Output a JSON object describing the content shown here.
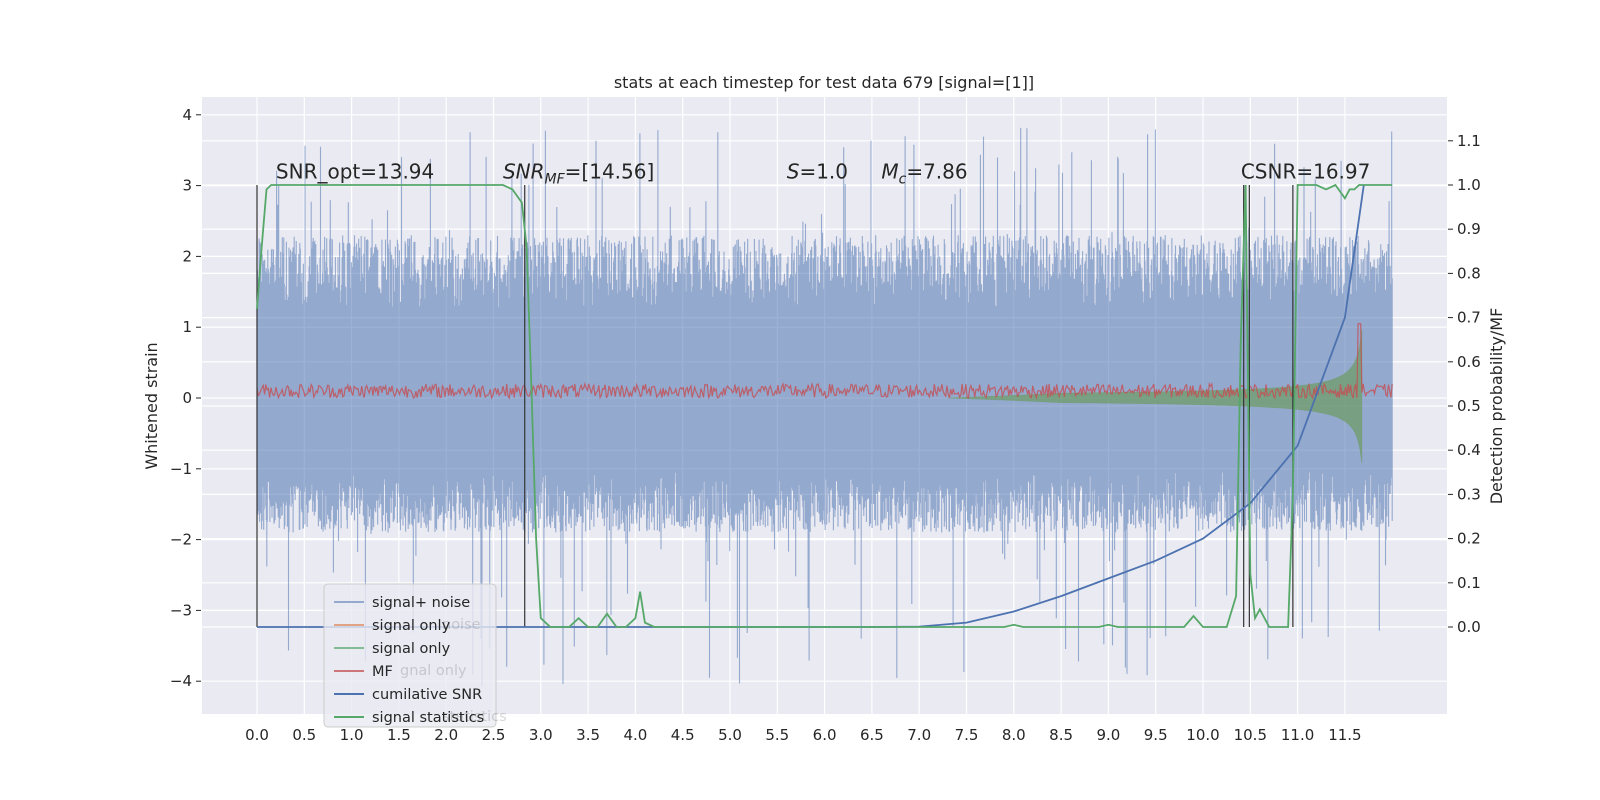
{
  "chart_data": {
    "type": "line",
    "title": "stats at each timestep for test data 679 [signal=[1]]",
    "xlabel": "",
    "ylabel": "Whitened strain",
    "y2label": "Detection probability/MF",
    "xlim": [
      -0.6,
      12.6
    ],
    "ylim": [
      -4.45,
      4.25
    ],
    "y2lim": [
      -0.2,
      1.19
    ],
    "grid": true,
    "background": "#eaeaf2",
    "x_ticks": [
      "0.0",
      "0.5",
      "1.0",
      "1.5",
      "2.0",
      "2.5",
      "3.0",
      "3.5",
      "4.0",
      "4.5",
      "5.0",
      "5.5",
      "6.0",
      "6.5",
      "7.0",
      "7.5",
      "8.0",
      "8.5",
      "9.0",
      "9.5",
      "10.0",
      "10.5",
      "11.0",
      "11.5"
    ],
    "y_ticks": [
      "−4",
      "−3",
      "−2",
      "−1",
      "0",
      "1",
      "2",
      "3",
      "4"
    ],
    "y2_ticks": [
      "0.0",
      "0.1",
      "0.2",
      "0.3",
      "0.4",
      "0.5",
      "0.6",
      "0.7",
      "0.8",
      "0.9",
      "1.0",
      "1.1"
    ],
    "annotations": [
      {
        "text": "SNR_opt=13.94",
        "x": 0.2,
        "y": 3.1
      },
      {
        "text": "SNR_MF=[14.56]",
        "x": 2.6,
        "y": 3.1
      },
      {
        "text": "S=1.0",
        "x": 5.6,
        "y": 3.1
      },
      {
        "text": "M_c=7.86",
        "x": 6.6,
        "y": 3.1
      },
      {
        "text": "CSNR=16.97",
        "x": 10.4,
        "y": 3.1
      }
    ],
    "legend": {
      "placement": "lower-left",
      "entries": [
        "signal+ noise",
        "signal only",
        "signal only",
        "MF",
        "cumilative SNR",
        "signal statistics"
      ],
      "ghost_entries": [
        "noise",
        "gnal only",
        "statistics"
      ]
    },
    "series": [
      {
        "name": "signal+ noise",
        "color": "#4c72b0",
        "style": "noise-band",
        "t_start": 0.0,
        "t_end": 12.0,
        "typical_range": [
          -1.9,
          2.3
        ],
        "peak_range": [
          -4.1,
          3.85
        ]
      },
      {
        "name": "signal only",
        "color": "#6a9a5a",
        "style": "chirp",
        "t_start": 7.3,
        "t_end": 11.68,
        "max_amplitude": 1.5
      },
      {
        "name": "MF",
        "color": "#c44e52",
        "style": "noisy-line",
        "t_start": 0.0,
        "t_end": 12.0,
        "level": 0.1,
        "spike_at": 11.65,
        "spike_value": 1.05
      },
      {
        "name": "cumilative SNR",
        "color": "#4c72b0",
        "axis": "right",
        "x": [
          0.0,
          6.5,
          7.0,
          7.5,
          8.0,
          8.5,
          9.0,
          9.5,
          10.0,
          10.5,
          11.0,
          11.5,
          11.7
        ],
        "y": [
          0.0,
          0.0,
          0.001,
          0.01,
          0.035,
          0.07,
          0.11,
          0.15,
          0.2,
          0.28,
          0.41,
          0.7,
          1.0
        ]
      },
      {
        "name": "signal statistics",
        "color": "#55a868",
        "axis": "right",
        "x": [
          0.0,
          0.05,
          0.1,
          0.15,
          0.2,
          2.5,
          2.6,
          2.7,
          2.8,
          2.85,
          2.9,
          2.95,
          3.0,
          3.1,
          3.3,
          3.4,
          3.5,
          3.6,
          3.7,
          3.8,
          3.9,
          4.0,
          4.05,
          4.1,
          4.2,
          6.0,
          7.5,
          7.9,
          8.0,
          8.1,
          8.9,
          9.0,
          9.1,
          9.5,
          9.6,
          9.8,
          9.9,
          10.0,
          10.25,
          10.35,
          10.4,
          10.45,
          10.5,
          10.55,
          10.6,
          10.7,
          10.8,
          10.9,
          10.95,
          11.0,
          11.2,
          11.3,
          11.4,
          11.5,
          11.55,
          11.6,
          11.65,
          11.7,
          12.0
        ],
        "y": [
          0.72,
          0.86,
          0.99,
          1.0,
          1.0,
          1.0,
          1.0,
          0.99,
          0.96,
          0.86,
          0.55,
          0.2,
          0.02,
          0.0,
          0.0,
          0.02,
          0.0,
          0.0,
          0.03,
          0.0,
          0.0,
          0.02,
          0.08,
          0.01,
          0.0,
          0.0,
          0.0,
          0.0,
          0.005,
          0.0,
          0.0,
          0.005,
          0.0,
          0.0,
          0.0,
          0.0,
          0.025,
          0.0,
          0.0,
          0.07,
          0.65,
          1.0,
          0.12,
          0.02,
          0.04,
          0.0,
          0.0,
          0.0,
          0.3,
          1.0,
          1.0,
          0.99,
          1.0,
          0.97,
          0.99,
          0.99,
          1.0,
          1.0,
          1.0
        ]
      }
    ],
    "vertical_lines": [
      0.0,
      2.83,
      10.43,
      10.49,
      10.95
    ]
  }
}
